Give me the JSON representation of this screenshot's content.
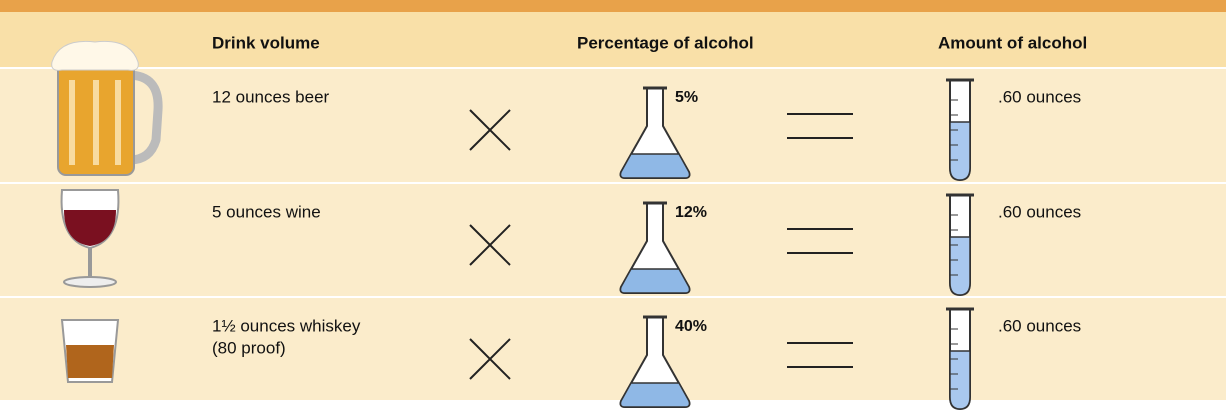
{
  "header": {
    "columns": [
      "Drink volume",
      "Percentage of alcohol",
      "Amount of alcohol"
    ]
  },
  "rows": [
    {
      "drink": [
        "12 ounces beer"
      ],
      "percentage": "5%",
      "amount": ".60 ounces"
    },
    {
      "drink": [
        "5 ounces wine"
      ],
      "percentage": "12%",
      "amount": ".60 ounces"
    },
    {
      "drink": [
        "1½ ounces whiskey",
        "(80 proof)"
      ],
      "percentage": "40%",
      "amount": ".60 ounces"
    }
  ]
}
